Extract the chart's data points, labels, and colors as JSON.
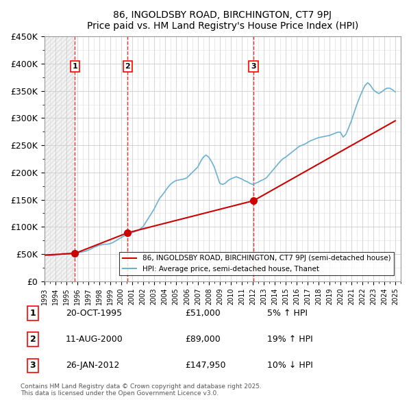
{
  "title": "86, INGOLDSBY ROAD, BIRCHINGTON, CT7 9PJ",
  "subtitle": "Price paid vs. HM Land Registry's House Price Index (HPI)",
  "xlim": [
    1993.0,
    2025.5
  ],
  "ylim": [
    0,
    450000
  ],
  "yticks": [
    0,
    50000,
    100000,
    150000,
    200000,
    250000,
    300000,
    350000,
    400000,
    450000
  ],
  "transactions": [
    {
      "num": 1,
      "date": "20-OCT-1995",
      "year": 1995.8,
      "price": 51000,
      "pct": "5%",
      "dir": "↑"
    },
    {
      "num": 2,
      "date": "11-AUG-2000",
      "year": 2000.6,
      "price": 89000,
      "pct": "19%",
      "dir": "↑"
    },
    {
      "num": 3,
      "date": "26-JAN-2012",
      "year": 2012.07,
      "price": 147950,
      "pct": "10%",
      "dir": "↓"
    }
  ],
  "legend_label_red": "86, INGOLDSBY ROAD, BIRCHINGTON, CT7 9PJ (semi-detached house)",
  "legend_label_blue": "HPI: Average price, semi-detached house, Thanet",
  "footer": "Contains HM Land Registry data © Crown copyright and database right 2025.\nThis data is licensed under the Open Government Licence v3.0.",
  "hpi_data": {
    "years": [
      1993.0,
      1993.25,
      1993.5,
      1993.75,
      1994.0,
      1994.25,
      1994.5,
      1994.75,
      1995.0,
      1995.25,
      1995.5,
      1995.75,
      1996.0,
      1996.25,
      1996.5,
      1996.75,
      1997.0,
      1997.25,
      1997.5,
      1997.75,
      1998.0,
      1998.25,
      1998.5,
      1998.75,
      1999.0,
      1999.25,
      1999.5,
      1999.75,
      2000.0,
      2000.25,
      2000.5,
      2000.75,
      2001.0,
      2001.25,
      2001.5,
      2001.75,
      2002.0,
      2002.25,
      2002.5,
      2002.75,
      2003.0,
      2003.25,
      2003.5,
      2003.75,
      2004.0,
      2004.25,
      2004.5,
      2004.75,
      2005.0,
      2005.25,
      2005.5,
      2005.75,
      2006.0,
      2006.25,
      2006.5,
      2006.75,
      2007.0,
      2007.25,
      2007.5,
      2007.75,
      2008.0,
      2008.25,
      2008.5,
      2008.75,
      2009.0,
      2009.25,
      2009.5,
      2009.75,
      2010.0,
      2010.25,
      2010.5,
      2010.75,
      2011.0,
      2011.25,
      2011.5,
      2011.75,
      2012.0,
      2012.25,
      2012.5,
      2012.75,
      2013.0,
      2013.25,
      2013.5,
      2013.75,
      2014.0,
      2014.25,
      2014.5,
      2014.75,
      2015.0,
      2015.25,
      2015.5,
      2015.75,
      2016.0,
      2016.25,
      2016.5,
      2016.75,
      2017.0,
      2017.25,
      2017.5,
      2017.75,
      2018.0,
      2018.25,
      2018.5,
      2018.75,
      2019.0,
      2019.25,
      2019.5,
      2019.75,
      2020.0,
      2020.25,
      2020.5,
      2020.75,
      2021.0,
      2021.25,
      2021.5,
      2021.75,
      2022.0,
      2022.25,
      2022.5,
      2022.75,
      2023.0,
      2023.25,
      2023.5,
      2023.75,
      2024.0,
      2024.25,
      2024.5,
      2024.75,
      2025.0
    ],
    "values": [
      48000,
      47500,
      47000,
      47500,
      48000,
      49000,
      50000,
      51000,
      51000,
      51500,
      52000,
      51000,
      52000,
      53000,
      54000,
      55000,
      57000,
      59000,
      62000,
      64000,
      66000,
      67000,
      68000,
      68000,
      69000,
      71000,
      74000,
      77000,
      80000,
      83000,
      85000,
      87000,
      89000,
      91000,
      93000,
      96000,
      100000,
      108000,
      116000,
      124000,
      132000,
      142000,
      152000,
      158000,
      165000,
      172000,
      178000,
      182000,
      185000,
      186000,
      187000,
      188000,
      190000,
      195000,
      200000,
      205000,
      210000,
      220000,
      228000,
      232000,
      228000,
      220000,
      210000,
      195000,
      180000,
      178000,
      180000,
      185000,
      188000,
      190000,
      192000,
      190000,
      188000,
      185000,
      183000,
      180000,
      178000,
      180000,
      182000,
      185000,
      187000,
      190000,
      196000,
      202000,
      208000,
      214000,
      220000,
      225000,
      228000,
      232000,
      236000,
      240000,
      244000,
      248000,
      250000,
      252000,
      255000,
      258000,
      260000,
      262000,
      264000,
      265000,
      266000,
      267000,
      268000,
      270000,
      272000,
      274000,
      274000,
      265000,
      270000,
      282000,
      295000,
      310000,
      325000,
      338000,
      350000,
      360000,
      365000,
      360000,
      352000,
      348000,
      345000,
      348000,
      352000,
      355000,
      355000,
      352000,
      348000
    ]
  },
  "price_line_data": {
    "years": [
      1993.0,
      1995.8,
      2000.6,
      2012.07,
      2025.0
    ],
    "values": [
      48000,
      51000,
      89000,
      147950,
      295000
    ]
  }
}
